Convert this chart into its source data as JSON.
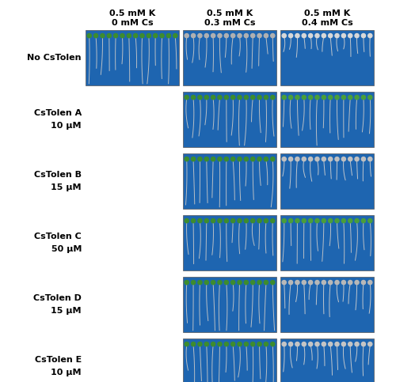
{
  "col_headers": [
    "0.5 mM K\n0 mM Cs",
    "0.5 mM K\n0.3 mM Cs",
    "0.5 mM K\n0.4 mM Cs"
  ],
  "row_labels": [
    [
      "No CsTolen",
      ""
    ],
    [
      "CsTolen A",
      "10 μM"
    ],
    [
      "CsTolen B",
      "15 μM"
    ],
    [
      "CsTolen C",
      "50 μM"
    ],
    [
      "CsTolen D",
      "15 μM"
    ],
    [
      "CsTolen E",
      "10 μM"
    ]
  ],
  "panel_present": [
    [
      true,
      true,
      true
    ],
    [
      false,
      true,
      true
    ],
    [
      false,
      true,
      true
    ],
    [
      false,
      true,
      true
    ],
    [
      false,
      true,
      true
    ],
    [
      false,
      true,
      true
    ]
  ],
  "bg_color": "#ffffff",
  "panel_bg": "#1e65b0",
  "label_color": "#000000",
  "header_fontsize": 8.0,
  "row_label_fontsize": 8.0,
  "figsize": [
    5.0,
    4.83
  ],
  "dpi": 100,
  "leaf_configs": {
    "0_0": {
      "leaf_color": "#3d8c2e",
      "root_scale": 1.0,
      "root_color": "#c8c8c8",
      "n": 14
    },
    "0_1": {
      "leaf_color": "#b0b0b0",
      "root_scale": 0.65,
      "root_color": "#c8c8c8",
      "n": 14
    },
    "0_2": {
      "leaf_color": "#d8d8d8",
      "root_scale": 0.4,
      "root_color": "#d0d0d0",
      "n": 14
    },
    "1_1": {
      "leaf_color": "#3d8c2e",
      "root_scale": 0.9,
      "root_color": "#c8c8c8",
      "n": 14
    },
    "1_2": {
      "leaf_color": "#4a9e3a",
      "root_scale": 0.85,
      "root_color": "#c8c8c8",
      "n": 14
    },
    "2_1": {
      "leaf_color": "#3d8c2e",
      "root_scale": 0.9,
      "root_color": "#c8c8c8",
      "n": 14
    },
    "2_2": {
      "leaf_color": "#c0c0c0",
      "root_scale": 0.55,
      "root_color": "#d0d0d0",
      "n": 14
    },
    "3_1": {
      "leaf_color": "#3d8c2e",
      "root_scale": 0.8,
      "root_color": "#c8c8c8",
      "n": 14
    },
    "3_2": {
      "leaf_color": "#4a9e3a",
      "root_scale": 0.75,
      "root_color": "#c8c8c8",
      "n": 14
    },
    "4_1": {
      "leaf_color": "#3d8c2e",
      "root_scale": 1.0,
      "root_color": "#c8c8c8",
      "n": 14
    },
    "4_2": {
      "leaf_color": "#b8b8b8",
      "root_scale": 0.6,
      "root_color": "#d0d0d0",
      "n": 14
    },
    "5_1": {
      "leaf_color": "#3d8c2e",
      "root_scale": 0.95,
      "root_color": "#c8c8c8",
      "n": 14
    },
    "5_2": {
      "leaf_color": "#c5c5c5",
      "root_scale": 0.55,
      "root_color": "#d0d0d0",
      "n": 14
    }
  }
}
